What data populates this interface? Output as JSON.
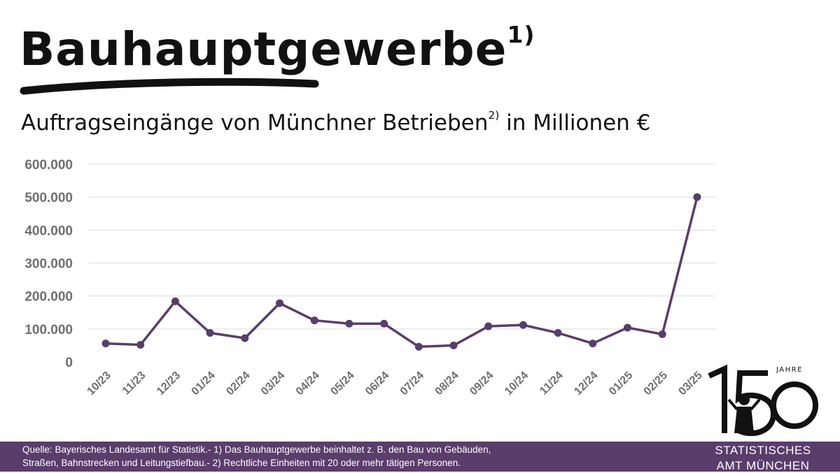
{
  "header": {
    "title": "Bauhauptgewerbe",
    "title_sup": "1)",
    "subtitle_main": "Auftragseingänge von Münchner Betrieben",
    "subtitle_sup": "2)",
    "subtitle_rest": " in Millionen €"
  },
  "chart_data": {
    "type": "line",
    "categories": [
      "10/23",
      "11/23",
      "12/23",
      "01/24",
      "02/24",
      "03/24",
      "04/24",
      "05/24",
      "06/24",
      "07/24",
      "08/24",
      "09/24",
      "10/24",
      "11/24",
      "12/24",
      "01/25",
      "02/25",
      "03/25"
    ],
    "series": [
      {
        "values": [
          56000,
          52000,
          184000,
          88000,
          72000,
          178000,
          126000,
          116000,
          116000,
          46000,
          50000,
          108000,
          112000,
          88000,
          56000,
          104000,
          84000,
          500000
        ]
      }
    ],
    "yticks": [
      "0",
      "100.000",
      "200.000",
      "300.000",
      "400.000",
      "500.000",
      "600.000"
    ],
    "ylim": [
      0,
      600000
    ],
    "grid": true,
    "legend": "none",
    "color": "#5a3d6b"
  },
  "footer": {
    "line1": "Quelle: Bayerisches Landesamt für Statistik.- 1) Das Bauhauptgewerbe beinhaltet z. B. den Bau von Gebäuden,",
    "line2": "Straßen, Bahnstrecken und Leitungstiefbau.- 2) Rechtliche Einheiten mit 20 oder mehr tätigen Personen."
  },
  "logo": {
    "number": "150",
    "jahre": "JAHRE",
    "org_line1": "STATISTISCHES",
    "org_line2": "AMT MÜNCHEN"
  }
}
